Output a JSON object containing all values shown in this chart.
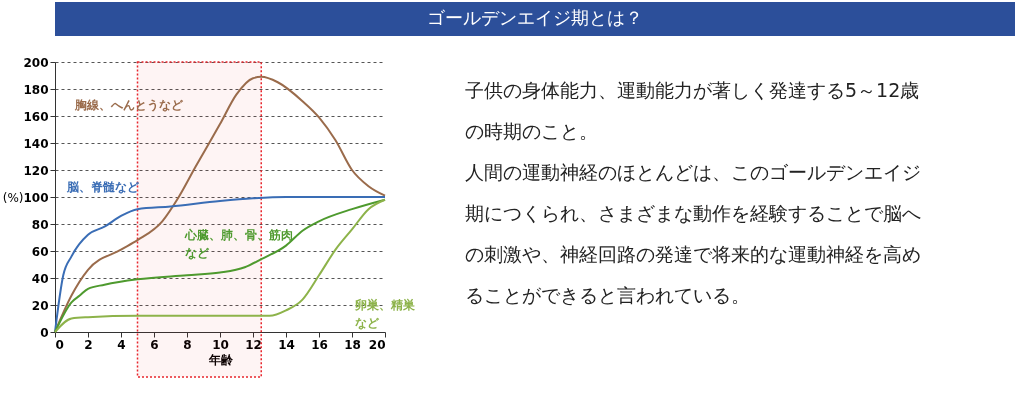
{
  "chart_data": {
    "type": "line",
    "title": "ゴールデンエイジ期とは？",
    "xlabel": "年齢",
    "ylabel": "(%)",
    "xlim": [
      0,
      20
    ],
    "xticks": [
      0,
      2,
      4,
      6,
      8,
      10,
      12,
      14,
      16,
      18,
      20
    ],
    "ylim": [
      0,
      200
    ],
    "yticks": [
      0,
      20,
      40,
      60,
      80,
      100,
      120,
      140,
      160,
      180,
      200
    ],
    "grid": "y",
    "marker": "none",
    "line_style": "solid",
    "bands": [
      {
        "axis": "x",
        "from": 5,
        "to": 12.5,
        "color": "#e8262d"
      }
    ],
    "series": [
      {
        "name": "胸線、へんとうなど",
        "color": "#9a6b4b",
        "x": [
          0,
          1,
          2,
          4,
          5,
          6.5,
          7.5,
          8.5,
          10,
          11,
          12,
          12.5,
          13.5,
          15,
          16,
          17,
          18,
          19,
          20
        ],
        "values": [
          0,
          27,
          46,
          61,
          68,
          82,
          100,
          122,
          154,
          176,
          188,
          189,
          185,
          171,
          159,
          142,
          120,
          108,
          101
        ]
      },
      {
        "name": "脳、脊髄など",
        "color": "#3a6db5",
        "x": [
          0,
          0.5,
          1,
          2,
          3,
          4,
          5,
          7,
          10,
          12,
          14,
          20
        ],
        "values": [
          0,
          42,
          56,
          72,
          78,
          86,
          91,
          93,
          97,
          99,
          100,
          100
        ]
      },
      {
        "name": "心臓、肺、骨、筋肉など",
        "color": "#4e9a2e",
        "x": [
          0,
          1,
          1.5,
          2,
          3,
          5,
          8,
          10,
          11.5,
          12.5,
          14,
          15,
          16,
          18,
          20
        ],
        "values": [
          0,
          22,
          27,
          32,
          35,
          39,
          42,
          44,
          48,
          54,
          64,
          75,
          82,
          91,
          98
        ]
      },
      {
        "name": "卵巣、精巣など",
        "color": "#8db34a",
        "x": [
          0,
          1,
          2,
          5,
          10,
          13,
          14,
          15,
          16,
          17,
          18,
          19,
          20
        ],
        "values": [
          0,
          10,
          11,
          12,
          12,
          12,
          16,
          24,
          42,
          61,
          76,
          91,
          98
        ]
      }
    ],
    "annotations": [
      "子供の身体能力、運動能力が著しく発達する5～12歳の時期のこと。",
      "人間の運動神経のほとんどは、このゴールデンエイジ期につくられ、さまざまな動作を経験することで脳への刺激や、神経回路の発達で将来的な運動神経を高めることができると言われている。"
    ]
  }
}
